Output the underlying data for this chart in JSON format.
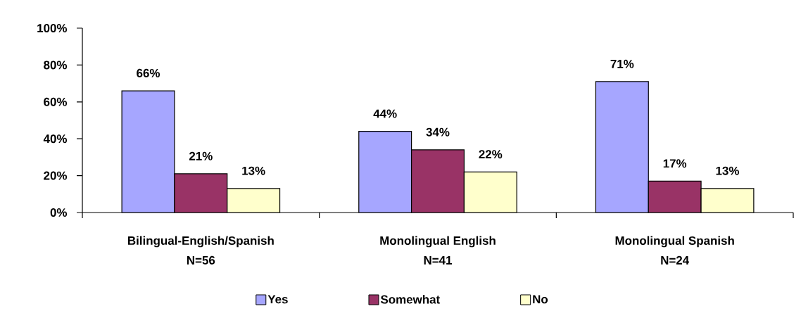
{
  "chart_data": {
    "type": "bar",
    "categories": [
      "Bilingual-English/Spanish\nN=56",
      "Monolingual English\nN=41",
      "Monolingual Spanish\nN=24"
    ],
    "series": [
      {
        "name": "Yes",
        "color": "#a6a6ff",
        "values": [
          66,
          44,
          71
        ],
        "value_labels": [
          "66%",
          "44%",
          "71%"
        ]
      },
      {
        "name": "Somewhat",
        "color": "#993366",
        "values": [
          21,
          34,
          17
        ],
        "value_labels": [
          "21%",
          "34%",
          "17%"
        ]
      },
      {
        "name": "No",
        "color": "#ffffcc",
        "values": [
          13,
          22,
          13
        ],
        "value_labels": [
          "13%",
          "22%",
          "13%"
        ]
      }
    ],
    "ylim": [
      0,
      100
    ],
    "yticks": [
      {
        "value": 0,
        "label": "0%"
      },
      {
        "value": 20,
        "label": "20%"
      },
      {
        "value": 40,
        "label": "40%"
      },
      {
        "value": 60,
        "label": "60%"
      },
      {
        "value": 80,
        "label": "80%"
      },
      {
        "value": 100,
        "label": "100%"
      }
    ],
    "legend": "bottom"
  }
}
